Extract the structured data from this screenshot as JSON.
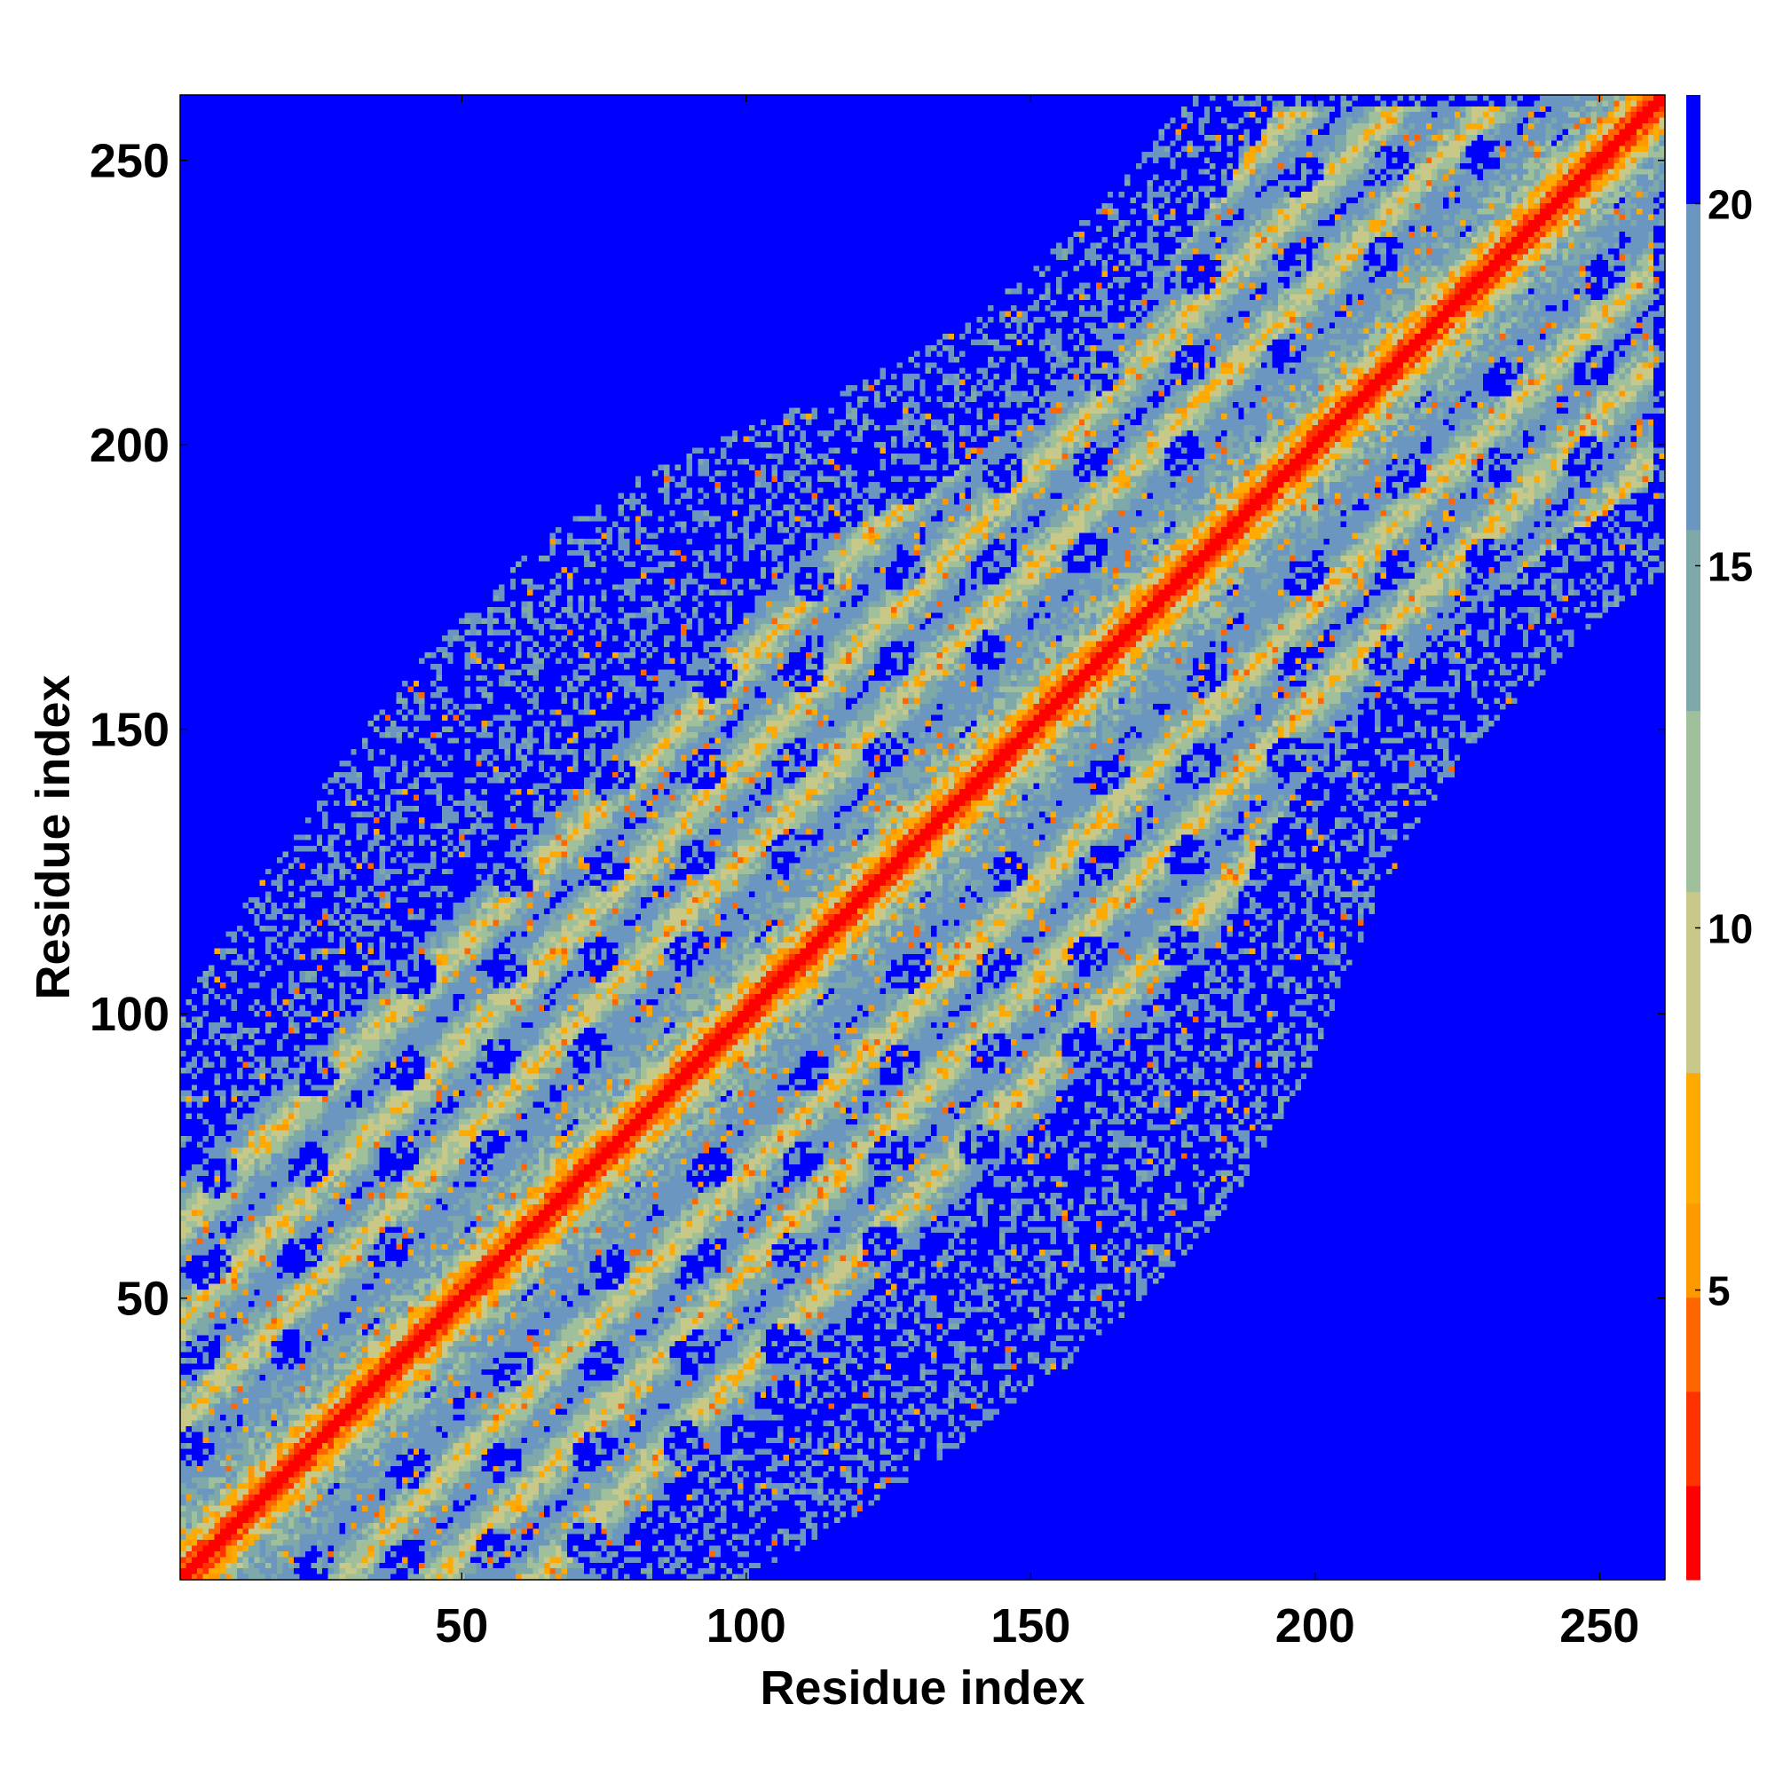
{
  "chart_data": {
    "type": "heatmap",
    "title": "",
    "xlabel": "Residue index",
    "ylabel": "Residue index",
    "x_range": [
      1,
      261
    ],
    "y_range": [
      1,
      261
    ],
    "x_ticks": [
      "50",
      "100",
      "150",
      "200",
      "250"
    ],
    "y_ticks": [
      "50",
      "100",
      "150",
      "200",
      "250"
    ],
    "x_tick_values": [
      50,
      100,
      150,
      200,
      250
    ],
    "y_tick_values": [
      50,
      100,
      150,
      200,
      250
    ],
    "colorbar": {
      "range": [
        1,
        21.5
      ],
      "ticks": [
        "5",
        "10",
        "15",
        "20"
      ],
      "tick_values": [
        5,
        10,
        15,
        20
      ],
      "colors": [
        "#ff0000",
        "#ff3300",
        "#ff6600",
        "#ff9900",
        "#ffaa00",
        "#c8c888",
        "#9fc09a",
        "#7fa8a8",
        "#6a96c0",
        "#0000ff"
      ],
      "boundaries": [
        1,
        2.3,
        3.6,
        4.9,
        6.2,
        8,
        10.5,
        13,
        15.5,
        20,
        21.5
      ]
    },
    "structure": {
      "description_values_diagonal": 1,
      "background_value": 21,
      "diagonal_band_half_width": 6,
      "contact_band_offsets": [
        28,
        45
      ],
      "secondary_contact_region": {
        "x": [
          180,
          250
        ],
        "y": [
          120,
          200
        ]
      }
    }
  }
}
